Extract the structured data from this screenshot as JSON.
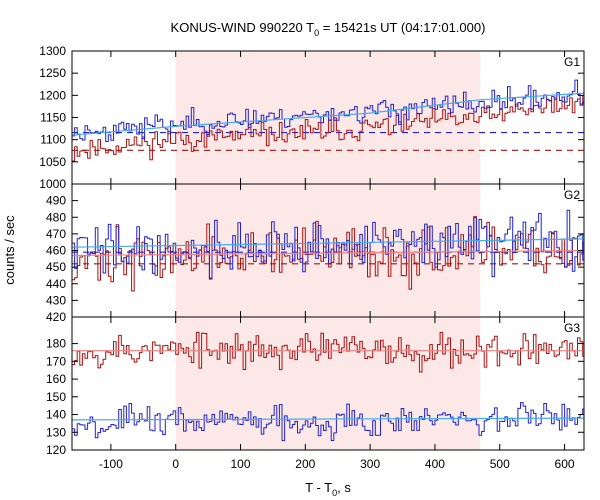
{
  "chart_data": {
    "type": "line",
    "title": {
      "prefix": "KONUS-WIND 990220 T",
      "sub": "0",
      "suffix": " = 15421s UT (04:17:01.000)"
    },
    "xlabel": {
      "prefix": "T - T",
      "sub": "0",
      "suffix": ", s"
    },
    "ylabel": "counts / sec",
    "xlim": [
      -160,
      630
    ],
    "xticks": [
      -100,
      0,
      100,
      200,
      300,
      400,
      500,
      600
    ],
    "shaded_interval": {
      "x": [
        0,
        470
      ],
      "color": "#fde8e8"
    },
    "grid": false,
    "colors": {
      "series_a": "#aa1111",
      "series_b": "#2222cc",
      "fit_a": "#f08080",
      "fit_b": "#44aaee"
    },
    "bin_width_s": 4,
    "panels": [
      {
        "name": "G1",
        "ylim": [
          1000,
          1300
        ],
        "yticks": [
          1000,
          1050,
          1100,
          1150,
          1200,
          1250,
          1300
        ],
        "background_levels": {
          "series_a": 1076,
          "series_b": 1116
        },
        "series": [
          {
            "key": "series_a",
            "trend": [
              [
                -160,
                1075
              ],
              [
                0,
                1100
              ],
              [
                250,
                1120
              ],
              [
                470,
                1150
              ],
              [
                630,
                1185
              ]
            ],
            "noise": 13,
            "seed": 11
          },
          {
            "key": "series_b",
            "trend": [
              [
                -160,
                1115
              ],
              [
                0,
                1135
              ],
              [
                250,
                1160
              ],
              [
                470,
                1180
              ],
              [
                630,
                1205
              ]
            ],
            "noise": 13,
            "seed": 23
          }
        ],
        "fits": [
          {
            "key": "series_b",
            "points": [
              [
                -160,
                1110
              ],
              [
                0,
                1130
              ],
              [
                300,
                1160
              ],
              [
                470,
                1190
              ],
              [
                630,
                1205
              ]
            ]
          }
        ]
      },
      {
        "name": "G2",
        "ylim": [
          420,
          500
        ],
        "yticks": [
          420,
          430,
          440,
          450,
          460,
          470,
          480,
          490
        ],
        "background_levels": {
          "series_a": 452,
          "series_b": 459
        },
        "series": [
          {
            "key": "series_a",
            "trend": [
              [
                -160,
                455
              ],
              [
                630,
                460
              ]
            ],
            "noise": 8,
            "seed": 37
          },
          {
            "key": "series_b",
            "trend": [
              [
                -160,
                460
              ],
              [
                630,
                466
              ]
            ],
            "noise": 8,
            "seed": 41
          }
        ],
        "fits": [
          {
            "key": "series_b",
            "points": [
              [
                -160,
                462
              ],
              [
                630,
                467
              ]
            ]
          },
          {
            "key": "series_a",
            "points": [
              [
                -160,
                457
              ],
              [
                630,
                460
              ]
            ]
          }
        ]
      },
      {
        "name": "G3",
        "ylim": [
          120,
          195
        ],
        "yticks": [
          120,
          130,
          140,
          150,
          160,
          170,
          180
        ],
        "background_levels": {},
        "series": [
          {
            "key": "series_a",
            "trend": [
              [
                -160,
                176
              ],
              [
                630,
                177
              ]
            ],
            "noise": 5,
            "seed": 53
          },
          {
            "key": "series_b",
            "trend": [
              [
                -160,
                136
              ],
              [
                630,
                137
              ]
            ],
            "noise": 4.5,
            "seed": 67
          }
        ],
        "fits": [
          {
            "key": "series_a",
            "points": [
              [
                -160,
                176
              ],
              [
                630,
                176
              ]
            ]
          },
          {
            "key": "series_b",
            "points": [
              [
                -160,
                137
              ],
              [
                630,
                138
              ]
            ]
          }
        ]
      }
    ]
  }
}
